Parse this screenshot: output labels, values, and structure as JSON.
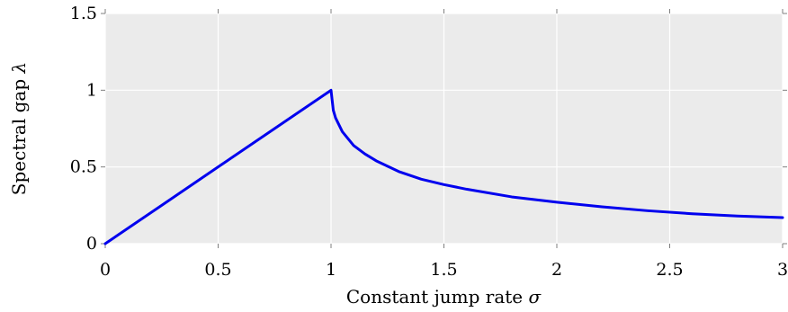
{
  "chart_data": {
    "type": "line",
    "title": "",
    "xlabel_text": "Constant jump rate",
    "xlabel_symbol": "σ",
    "ylabel_text": "Spectral gap",
    "ylabel_symbol": "λ",
    "xlim": [
      0,
      3
    ],
    "ylim": [
      0,
      1.5
    ],
    "x_ticks": [
      0,
      0.5,
      1,
      1.5,
      2,
      2.5,
      3
    ],
    "x_tick_labels": [
      "0",
      "0.5",
      "1",
      "1.5",
      "2",
      "2.5",
      "3"
    ],
    "y_ticks": [
      0,
      0.5,
      1,
      1.5
    ],
    "y_tick_labels": [
      "0",
      "0.5",
      "1",
      "1.5"
    ],
    "grid": true,
    "legend": "none",
    "series": [
      {
        "color": "#0000ee",
        "x": [
          0,
          0.25,
          0.5,
          0.75,
          1.0,
          1.01,
          1.02,
          1.05,
          1.1,
          1.15,
          1.2,
          1.3,
          1.4,
          1.5,
          1.6,
          1.8,
          2.0,
          2.2,
          2.4,
          2.6,
          2.8,
          3.0
        ],
        "y": [
          0,
          0.25,
          0.5,
          0.75,
          1.0,
          0.87,
          0.82,
          0.73,
          0.64,
          0.585,
          0.54,
          0.47,
          0.42,
          0.385,
          0.355,
          0.305,
          0.27,
          0.24,
          0.215,
          0.195,
          0.18,
          0.17
        ]
      }
    ],
    "colors": {
      "plot_background": "#ebebeb",
      "grid": "#ffffff",
      "line": "#0000ee",
      "tick_mark": "#7f7f7f"
    }
  }
}
